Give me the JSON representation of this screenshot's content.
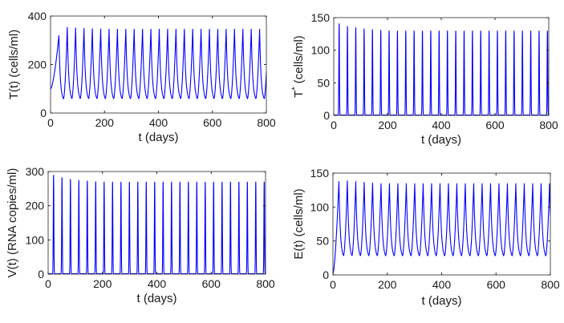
{
  "chart_data": [
    {
      "type": "line",
      "id": "T",
      "title": "",
      "xlabel": "t (days)",
      "ylabel": "T(t) (cells/ml)",
      "xlim": [
        0,
        800
      ],
      "ylim": [
        0,
        400
      ],
      "xticks": [
        0,
        200,
        400,
        600,
        800
      ],
      "yticks": [
        0,
        200,
        400
      ],
      "grid": false,
      "series": [
        {
          "name": "T(t)",
          "color": "#0000ff",
          "oscillation": {
            "start_value": 100,
            "period_days": 31,
            "peak_values": [
              320,
              355,
              352,
              350,
              349,
              348,
              347
            ],
            "trough_value": 48
          }
        }
      ]
    },
    {
      "type": "line",
      "id": "Tstar",
      "title": "",
      "xlabel": "t (days)",
      "ylabel": "T",
      "ylabel_superscript": "*",
      "ylabel_suffix": " (cells/ml)",
      "xlim": [
        0,
        800
      ],
      "ylim": [
        0,
        150
      ],
      "xticks": [
        0,
        200,
        400,
        600,
        800
      ],
      "yticks": [
        0,
        50,
        100,
        150
      ],
      "grid": false,
      "series": [
        {
          "name": "T*(t)",
          "color": "#0000ff",
          "spikes": {
            "first_day": 20,
            "period_days": 31,
            "peak_values": [
              141,
              137,
              135,
              133,
              132,
              131,
              130
            ],
            "baseline": 0.5
          }
        }
      ]
    },
    {
      "type": "line",
      "id": "V",
      "title": "",
      "xlabel": "t (days)",
      "ylabel": "V(t) (RNA copies/ml)",
      "xlim": [
        0,
        800
      ],
      "ylim": [
        0,
        300
      ],
      "xticks": [
        0,
        200,
        400,
        600,
        800
      ],
      "yticks": [
        0,
        100,
        200,
        300
      ],
      "grid": false,
      "series": [
        {
          "name": "V(t)",
          "color": "#0000ff",
          "spikes": {
            "first_day": 20,
            "period_days": 31,
            "peak_values": [
              290,
              283,
              278,
              275,
              273,
              271,
              270
            ],
            "baseline": 1
          }
        }
      ]
    },
    {
      "type": "line",
      "id": "E",
      "title": "",
      "xlabel": "t (days)",
      "ylabel": "E(t) (cells/ml)",
      "xlim": [
        0,
        800
      ],
      "ylim": [
        0,
        150
      ],
      "xticks": [
        0,
        200,
        400,
        600,
        800
      ],
      "yticks": [
        0,
        50,
        100,
        150
      ],
      "grid": false,
      "series": [
        {
          "name": "E(t)",
          "color": "#0000ff",
          "oscillation": {
            "start_value": 2,
            "first_day": 22,
            "period_days": 31,
            "peak_values": [
              138,
              139,
              138,
              137,
              136,
              135,
              135
            ],
            "trough_value": 24
          }
        }
      ]
    }
  ]
}
